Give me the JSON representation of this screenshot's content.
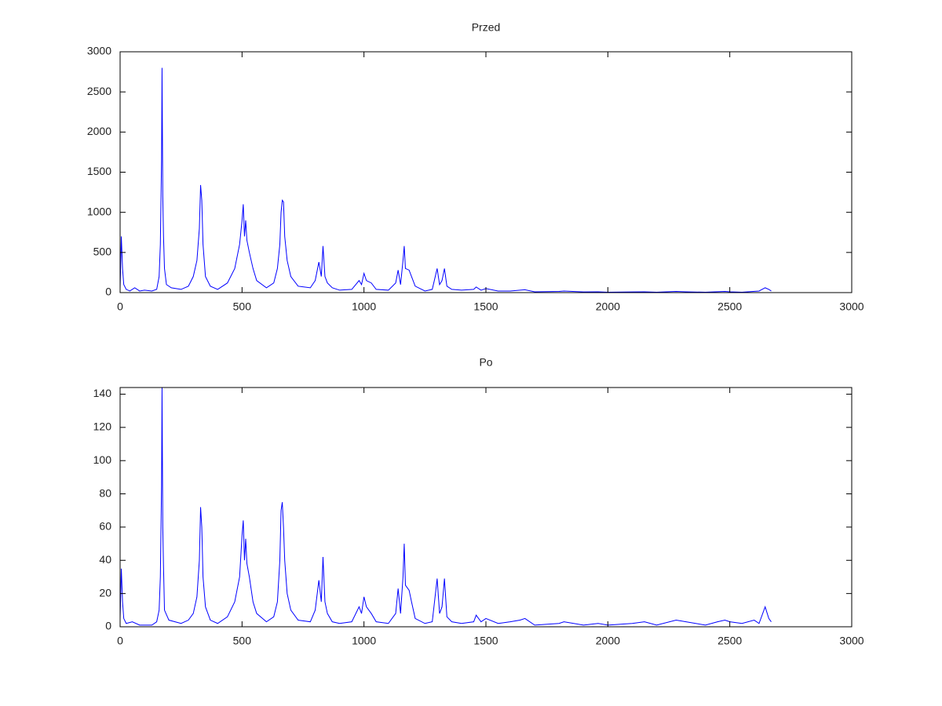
{
  "chart_data": [
    {
      "type": "line",
      "title": "Przed",
      "color": "#0000ff",
      "x": [
        0,
        5,
        10,
        15,
        25,
        40,
        60,
        80,
        100,
        130,
        150,
        160,
        165,
        170,
        172,
        175,
        178,
        182,
        190,
        210,
        250,
        280,
        300,
        315,
        325,
        330,
        335,
        340,
        350,
        370,
        400,
        440,
        470,
        490,
        500,
        505,
        510,
        515,
        520,
        530,
        545,
        560,
        600,
        630,
        645,
        655,
        660,
        665,
        670,
        675,
        685,
        700,
        730,
        780,
        800,
        815,
        825,
        832,
        840,
        850,
        870,
        900,
        950,
        980,
        990,
        1000,
        1010,
        1030,
        1050,
        1100,
        1130,
        1140,
        1150,
        1160,
        1165,
        1170,
        1185,
        1195,
        1210,
        1250,
        1280,
        1300,
        1310,
        1320,
        1330,
        1340,
        1360,
        1400,
        1450,
        1460,
        1480,
        1500,
        1550,
        1600,
        1640,
        1660,
        1700,
        1800,
        1820,
        1900,
        1960,
        2000,
        2100,
        2150,
        2200,
        2280,
        2320,
        2400,
        2480,
        2500,
        2550,
        2620,
        2645,
        2660,
        2670
      ],
      "values": [
        50,
        700,
        300,
        100,
        40,
        20,
        60,
        20,
        30,
        20,
        40,
        200,
        600,
        1650,
        2800,
        1200,
        700,
        300,
        100,
        60,
        40,
        80,
        200,
        400,
        800,
        1340,
        1150,
        600,
        200,
        80,
        40,
        120,
        300,
        600,
        900,
        1100,
        700,
        900,
        650,
        500,
        300,
        150,
        60,
        120,
        300,
        600,
        1000,
        1150,
        1130,
        700,
        400,
        200,
        80,
        60,
        150,
        380,
        200,
        580,
        200,
        120,
        60,
        30,
        40,
        150,
        100,
        240,
        150,
        120,
        40,
        30,
        120,
        280,
        100,
        400,
        580,
        300,
        280,
        200,
        80,
        20,
        40,
        300,
        100,
        150,
        300,
        80,
        40,
        30,
        40,
        70,
        30,
        50,
        20,
        20,
        30,
        35,
        10,
        15,
        20,
        8,
        10,
        5,
        8,
        10,
        5,
        15,
        10,
        5,
        15,
        10,
        5,
        20,
        60,
        40,
        20
      ],
      "xlim": [
        0,
        3000
      ],
      "xticks": [
        0,
        500,
        1000,
        1500,
        2000,
        2500,
        3000
      ],
      "ylim": [
        0,
        3000
      ],
      "yticks": [
        0,
        500,
        1000,
        1500,
        2000,
        2500,
        3000
      ]
    },
    {
      "type": "line",
      "title": "Po",
      "color": "#0000ff",
      "x": [
        0,
        5,
        10,
        15,
        25,
        50,
        80,
        130,
        150,
        160,
        165,
        170,
        172,
        175,
        178,
        182,
        200,
        250,
        280,
        300,
        315,
        325,
        330,
        335,
        340,
        350,
        370,
        400,
        440,
        470,
        490,
        500,
        505,
        510,
        515,
        520,
        530,
        545,
        560,
        600,
        630,
        645,
        655,
        660,
        665,
        670,
        675,
        685,
        700,
        730,
        780,
        800,
        815,
        825,
        832,
        840,
        850,
        870,
        900,
        950,
        980,
        990,
        1000,
        1010,
        1030,
        1050,
        1100,
        1130,
        1140,
        1150,
        1160,
        1165,
        1170,
        1185,
        1195,
        1210,
        1250,
        1280,
        1300,
        1310,
        1320,
        1330,
        1340,
        1360,
        1400,
        1450,
        1460,
        1480,
        1500,
        1550,
        1600,
        1640,
        1660,
        1700,
        1800,
        1820,
        1900,
        1960,
        2000,
        2100,
        2150,
        2200,
        2280,
        2320,
        2400,
        2450,
        2480,
        2500,
        2550,
        2600,
        2620,
        2645,
        2660,
        2670
      ],
      "values": [
        5,
        35,
        15,
        5,
        2,
        3,
        1,
        1,
        3,
        10,
        30,
        85,
        144,
        60,
        36,
        10,
        4,
        2,
        4,
        8,
        18,
        40,
        72,
        60,
        30,
        12,
        4,
        2,
        6,
        15,
        30,
        55,
        64,
        40,
        53,
        38,
        30,
        15,
        8,
        3,
        6,
        15,
        40,
        70,
        75,
        60,
        40,
        20,
        10,
        4,
        3,
        10,
        28,
        15,
        42,
        15,
        8,
        3,
        2,
        3,
        12,
        8,
        18,
        12,
        8,
        3,
        2,
        8,
        23,
        8,
        30,
        50,
        25,
        22,
        15,
        5,
        2,
        3,
        29,
        8,
        12,
        29,
        6,
        3,
        2,
        3,
        7,
        3,
        5,
        2,
        3,
        4,
        5,
        1,
        2,
        3,
        1,
        2,
        1,
        2,
        3,
        1,
        4,
        3,
        1,
        3,
        4,
        3,
        2,
        4,
        2,
        12,
        5,
        3
      ],
      "xlim": [
        0,
        3000
      ],
      "xticks": [
        0,
        500,
        1000,
        1500,
        2000,
        2500,
        3000
      ],
      "ylim": [
        0,
        144
      ],
      "yticks": [
        0,
        20,
        40,
        60,
        80,
        100,
        120,
        140
      ]
    }
  ]
}
